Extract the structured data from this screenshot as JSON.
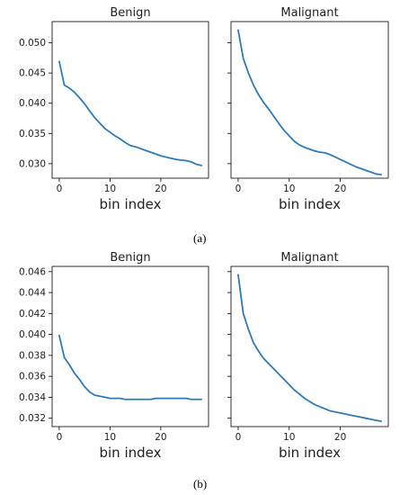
{
  "figure": {
    "captions": [
      "(a)",
      "(b)"
    ]
  },
  "colors": {
    "line": "#2f7ab7",
    "axis": "#000000",
    "text": "#222222"
  },
  "chart_data": [
    {
      "type": "line",
      "title": "Benign",
      "xlabel": "bin index",
      "ylabel": "",
      "xlim": [
        -1.4,
        29.4
      ],
      "ylim": [
        0.0276,
        0.0535
      ],
      "xticks": [
        0,
        10,
        20
      ],
      "yticks": [
        0.03,
        0.035,
        0.04,
        0.045,
        0.05
      ],
      "ytick_labels": [
        "0.030",
        "0.035",
        "0.040",
        "0.045",
        "0.050"
      ],
      "show_yticklabels": true,
      "grid": false,
      "series": [
        {
          "x": [
            0,
            1,
            2,
            3,
            4,
            5,
            6,
            7,
            8,
            9,
            10,
            11,
            12,
            13,
            14,
            15,
            16,
            17,
            18,
            19,
            20,
            21,
            22,
            23,
            24,
            25,
            26,
            27,
            28
          ],
          "values": [
            0.0469,
            0.043,
            0.0425,
            0.0418,
            0.0409,
            0.0399,
            0.0387,
            0.0376,
            0.0367,
            0.0358,
            0.0352,
            0.0346,
            0.0341,
            0.0335,
            0.033,
            0.0328,
            0.0325,
            0.0322,
            0.0319,
            0.0316,
            0.0313,
            0.0311,
            0.0309,
            0.0307,
            0.0306,
            0.0305,
            0.0303,
            0.0299,
            0.0297
          ]
        }
      ]
    },
    {
      "type": "line",
      "title": "Malignant",
      "xlabel": "bin index",
      "ylabel": "",
      "xlim": [
        -1.4,
        29.4
      ],
      "ylim": [
        0.0276,
        0.0535
      ],
      "xticks": [
        0,
        10,
        20
      ],
      "yticks": [
        0.03,
        0.035,
        0.04,
        0.045,
        0.05
      ],
      "ytick_labels": [
        "",
        "",
        "",
        "",
        ""
      ],
      "show_yticklabels": false,
      "grid": false,
      "series": [
        {
          "x": [
            0,
            1,
            2,
            3,
            4,
            5,
            6,
            7,
            8,
            9,
            10,
            11,
            12,
            13,
            14,
            15,
            16,
            17,
            18,
            19,
            20,
            21,
            22,
            23,
            24,
            25,
            26,
            27,
            28
          ],
          "values": [
            0.0521,
            0.0474,
            0.045,
            0.043,
            0.0414,
            0.0401,
            0.039,
            0.0378,
            0.0366,
            0.0355,
            0.0346,
            0.0337,
            0.0331,
            0.0327,
            0.0324,
            0.0321,
            0.0319,
            0.0318,
            0.0315,
            0.0311,
            0.0307,
            0.0303,
            0.0299,
            0.0295,
            0.0292,
            0.0289,
            0.0286,
            0.0283,
            0.0282
          ]
        }
      ]
    },
    {
      "type": "line",
      "title": "Benign",
      "xlabel": "bin index",
      "ylabel": "",
      "xlim": [
        -1.4,
        29.4
      ],
      "ylim": [
        0.0312,
        0.0465
      ],
      "xticks": [
        0,
        10,
        20
      ],
      "yticks": [
        0.032,
        0.034,
        0.036,
        0.038,
        0.04,
        0.042,
        0.044,
        0.046
      ],
      "ytick_labels": [
        "0.032",
        "0.034",
        "0.036",
        "0.038",
        "0.040",
        "0.042",
        "0.044",
        "0.046"
      ],
      "show_yticklabels": true,
      "grid": false,
      "series": [
        {
          "x": [
            0,
            1,
            2,
            3,
            4,
            5,
            6,
            7,
            8,
            9,
            10,
            11,
            12,
            13,
            14,
            15,
            16,
            17,
            18,
            19,
            20,
            21,
            22,
            23,
            24,
            25,
            26,
            27,
            28
          ],
          "values": [
            0.0399,
            0.0378,
            0.0371,
            0.0363,
            0.0357,
            0.035,
            0.0345,
            0.0342,
            0.0341,
            0.034,
            0.0339,
            0.0339,
            0.0339,
            0.0338,
            0.0338,
            0.0338,
            0.0338,
            0.0338,
            0.0338,
            0.0339,
            0.0339,
            0.0339,
            0.0339,
            0.0339,
            0.0339,
            0.0339,
            0.0338,
            0.0338,
            0.0338
          ]
        }
      ]
    },
    {
      "type": "line",
      "title": "Malignant",
      "xlabel": "bin index",
      "ylabel": "",
      "xlim": [
        -1.4,
        29.4
      ],
      "ylim": [
        0.0312,
        0.0465
      ],
      "xticks": [
        0,
        10,
        20
      ],
      "yticks": [
        0.032,
        0.034,
        0.036,
        0.038,
        0.04,
        0.042,
        0.044,
        0.046
      ],
      "ytick_labels": [
        "",
        "",
        "",
        "",
        "",
        "",
        "",
        ""
      ],
      "show_yticklabels": false,
      "grid": false,
      "series": [
        {
          "x": [
            0,
            1,
            2,
            3,
            4,
            5,
            6,
            7,
            8,
            9,
            10,
            11,
            12,
            13,
            14,
            15,
            16,
            17,
            18,
            19,
            20,
            21,
            22,
            23,
            24,
            25,
            26,
            27,
            28
          ],
          "values": [
            0.0457,
            0.042,
            0.0405,
            0.0392,
            0.0384,
            0.0377,
            0.0372,
            0.0367,
            0.0362,
            0.0357,
            0.0352,
            0.0347,
            0.0343,
            0.0339,
            0.0336,
            0.0333,
            0.0331,
            0.0329,
            0.0327,
            0.0326,
            0.0325,
            0.0324,
            0.0323,
            0.0322,
            0.0321,
            0.032,
            0.0319,
            0.0318,
            0.0317
          ]
        }
      ]
    }
  ]
}
